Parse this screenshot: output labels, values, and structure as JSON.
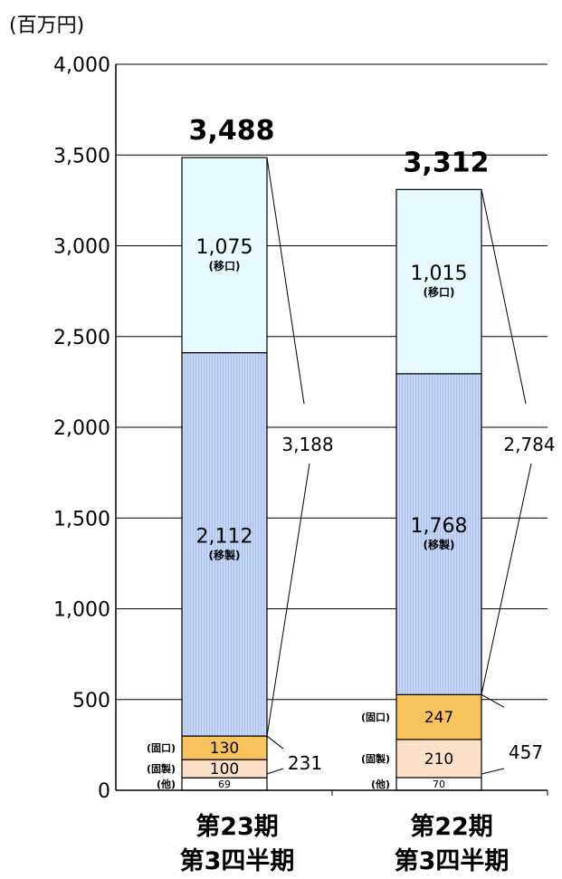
{
  "chart_data": {
    "type": "bar",
    "stacked": true,
    "unit_label": "(百万円)",
    "ylim": [
      0,
      4000
    ],
    "y_ticks": [
      "4,000",
      "3,500",
      "3,000",
      "2,500",
      "2,000",
      "1,500",
      "1,000",
      "500",
      "0"
    ],
    "y_tick_values": [
      4000,
      3500,
      3000,
      2500,
      2000,
      1500,
      1000,
      500,
      0
    ],
    "grid": "horizontal",
    "categories": [
      {
        "line1": "第23期",
        "line2": "第3四半期"
      },
      {
        "line1": "第22期",
        "line2": "第3四半期"
      }
    ],
    "series": [
      {
        "key": "other",
        "tag": "(他)",
        "color": "#ffffff",
        "values": [
          69,
          70
        ],
        "labels": [
          "69",
          "70"
        ]
      },
      {
        "key": "fixed_mfg",
        "tag": "(固製)",
        "color": "#fde0c8",
        "values": [
          100,
          210
        ],
        "labels": [
          "100",
          "210"
        ]
      },
      {
        "key": "fixed_port",
        "tag": "(固口)",
        "color": "#f8c25c",
        "values": [
          130,
          247
        ],
        "labels": [
          "130",
          "247"
        ]
      },
      {
        "key": "mobile_mfg",
        "tag": "(移製)",
        "color": "#b7cdf0",
        "values": [
          2112,
          1768
        ],
        "labels": [
          "2,112",
          "1,768"
        ]
      },
      {
        "key": "mobile_port",
        "tag": "(移口)",
        "color": "#e6fafd",
        "values": [
          1075,
          1015
        ],
        "labels": [
          "1,075",
          "1,015"
        ]
      }
    ],
    "totals": [
      "3,488",
      "3,312"
    ],
    "subtotal_mobile": [
      "3,188",
      "2,784"
    ],
    "subtotal_fixed_other": [
      "231",
      "457"
    ]
  }
}
